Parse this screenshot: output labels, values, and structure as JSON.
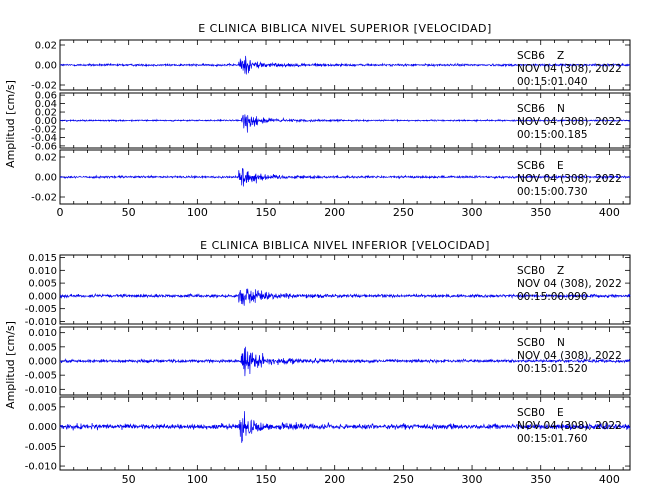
{
  "chart_data": [
    {
      "type": "line",
      "title": "E CLINICA BIBLICA NIVEL SUPERIOR [VELOCIDAD]",
      "ylabel": "Amplitud [cm/s]",
      "xlim": [
        0,
        415
      ],
      "xticks": [
        0,
        50,
        100,
        150,
        200,
        250,
        300,
        350,
        400
      ],
      "trace_color": "#0000ee",
      "channels": [
        {
          "station": "SCB6",
          "component": "Z",
          "date": "NOV 04 (308), 2022",
          "time": "00:15:01.040",
          "ylim": [
            -0.025,
            0.025
          ],
          "yticks": [
            "0.02",
            "0.00",
            "-0.02"
          ],
          "ytick_values": [
            0.02,
            0.0,
            -0.02
          ],
          "arrival_s": 131,
          "peak_amplitude": 0.022,
          "noise_amplitude": 0.002
        },
        {
          "station": "SCB6",
          "component": "N",
          "date": "NOV 04 (308), 2022",
          "time": "00:15:00.185",
          "ylim": [
            -0.065,
            0.065
          ],
          "yticks": [
            "0.06",
            "0.04",
            "0.02",
            "0.00",
            "-0.02",
            "-0.04",
            "-0.06"
          ],
          "ytick_values": [
            0.06,
            0.04,
            0.02,
            0.0,
            -0.02,
            -0.04,
            -0.06
          ],
          "arrival_s": 133,
          "peak_amplitude": 0.055,
          "noise_amplitude": 0.003
        },
        {
          "station": "SCB6",
          "component": "E",
          "date": "NOV 04 (308), 2022",
          "time": "00:15:00.730",
          "ylim": [
            -0.027,
            0.027
          ],
          "yticks": [
            "0.02",
            "0.00",
            "-0.02"
          ],
          "ytick_values": [
            0.02,
            0.0,
            -0.02
          ],
          "arrival_s": 131,
          "peak_amplitude": 0.025,
          "noise_amplitude": 0.002
        }
      ]
    },
    {
      "type": "line",
      "title": "E CLINICA BIBLICA NIVEL INFERIOR [VELOCIDAD]",
      "ylabel": "Amplitud [cm/s]",
      "xlim": [
        0,
        415
      ],
      "xticks": [
        50,
        100,
        150,
        200,
        250,
        300,
        350,
        400
      ],
      "trace_color": "#0000ee",
      "channels": [
        {
          "station": "SCB0",
          "component": "Z",
          "date": "NOV 04 (308), 2022",
          "time": "00:15:00.090",
          "ylim": [
            -0.011,
            0.016
          ],
          "yticks": [
            "0.015",
            "0.010",
            "0.005",
            "0.000",
            "-0.005",
            "-0.010"
          ],
          "ytick_values": [
            0.015,
            0.01,
            0.005,
            0.0,
            -0.005,
            -0.01
          ],
          "arrival_s": 131,
          "peak_amplitude": 0.011,
          "noise_amplitude": 0.0011
        },
        {
          "station": "SCB0",
          "component": "N",
          "date": "NOV 04 (308), 2022",
          "time": "00:15:01.520",
          "ylim": [
            -0.012,
            0.012
          ],
          "yticks": [
            "0.010",
            "0.005",
            "0.000",
            "-0.005",
            "-0.010"
          ],
          "ytick_values": [
            0.01,
            0.005,
            0.0,
            -0.005,
            -0.01
          ],
          "arrival_s": 133,
          "peak_amplitude": 0.012,
          "noise_amplitude": 0.001
        },
        {
          "station": "SCB0",
          "component": "E",
          "date": "NOV 04 (308), 2022",
          "time": "00:15:01.760",
          "ylim": [
            -0.011,
            0.0075
          ],
          "yticks": [
            "0.005",
            "0.000",
            "-0.005",
            "-0.010"
          ],
          "ytick_values": [
            0.005,
            0.0,
            -0.005,
            -0.01
          ],
          "arrival_s": 131,
          "peak_amplitude": 0.0075,
          "noise_amplitude": 0.0012
        }
      ]
    }
  ]
}
